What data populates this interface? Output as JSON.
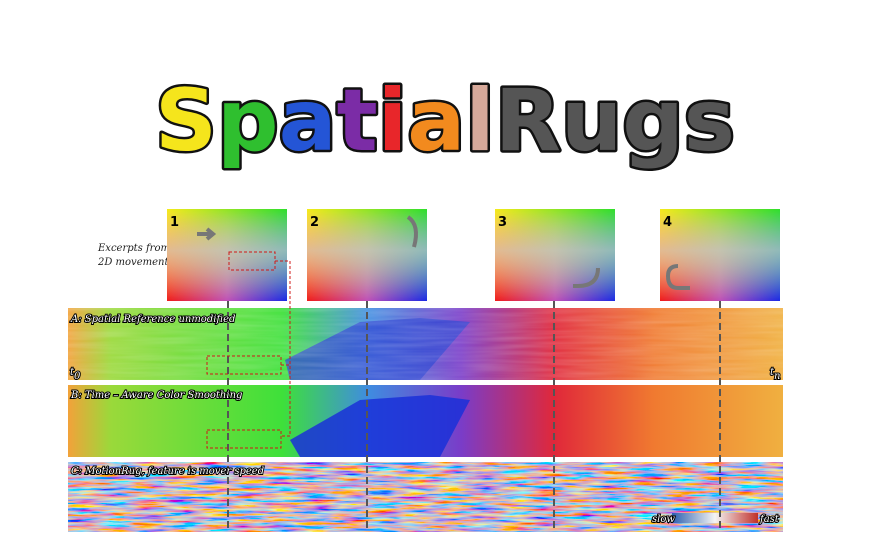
{
  "title": {
    "segments": [
      {
        "text": "S",
        "color": "#f5e51c"
      },
      {
        "text": "p",
        "color": "#2fbf2f"
      },
      {
        "text": "a",
        "color": "#2455d6"
      },
      {
        "text": "t",
        "color": "#7b2ca6"
      },
      {
        "text": "i",
        "color": "#e8262a"
      },
      {
        "text": "a",
        "color": "#f28a1e"
      },
      {
        "text": "l",
        "color": "#d7a99a"
      },
      {
        "text": "Rugs",
        "color": "#555555"
      }
    ]
  },
  "excerpts": {
    "label": [
      "Excerpts from",
      "2D movement:"
    ]
  },
  "panels": [
    "1",
    "2",
    "3",
    "4"
  ],
  "rugs": [
    "A: Spatial Reference unmodified",
    "B: Time – Aware Color Smoothing",
    "C: MotionRug, feature is mover speed"
  ],
  "time_start": {
    "base": "t",
    "sub": "0"
  },
  "time_end": {
    "base": "t",
    "sub": "n"
  },
  "legend": {
    "low": "slow",
    "high": "fast"
  }
}
